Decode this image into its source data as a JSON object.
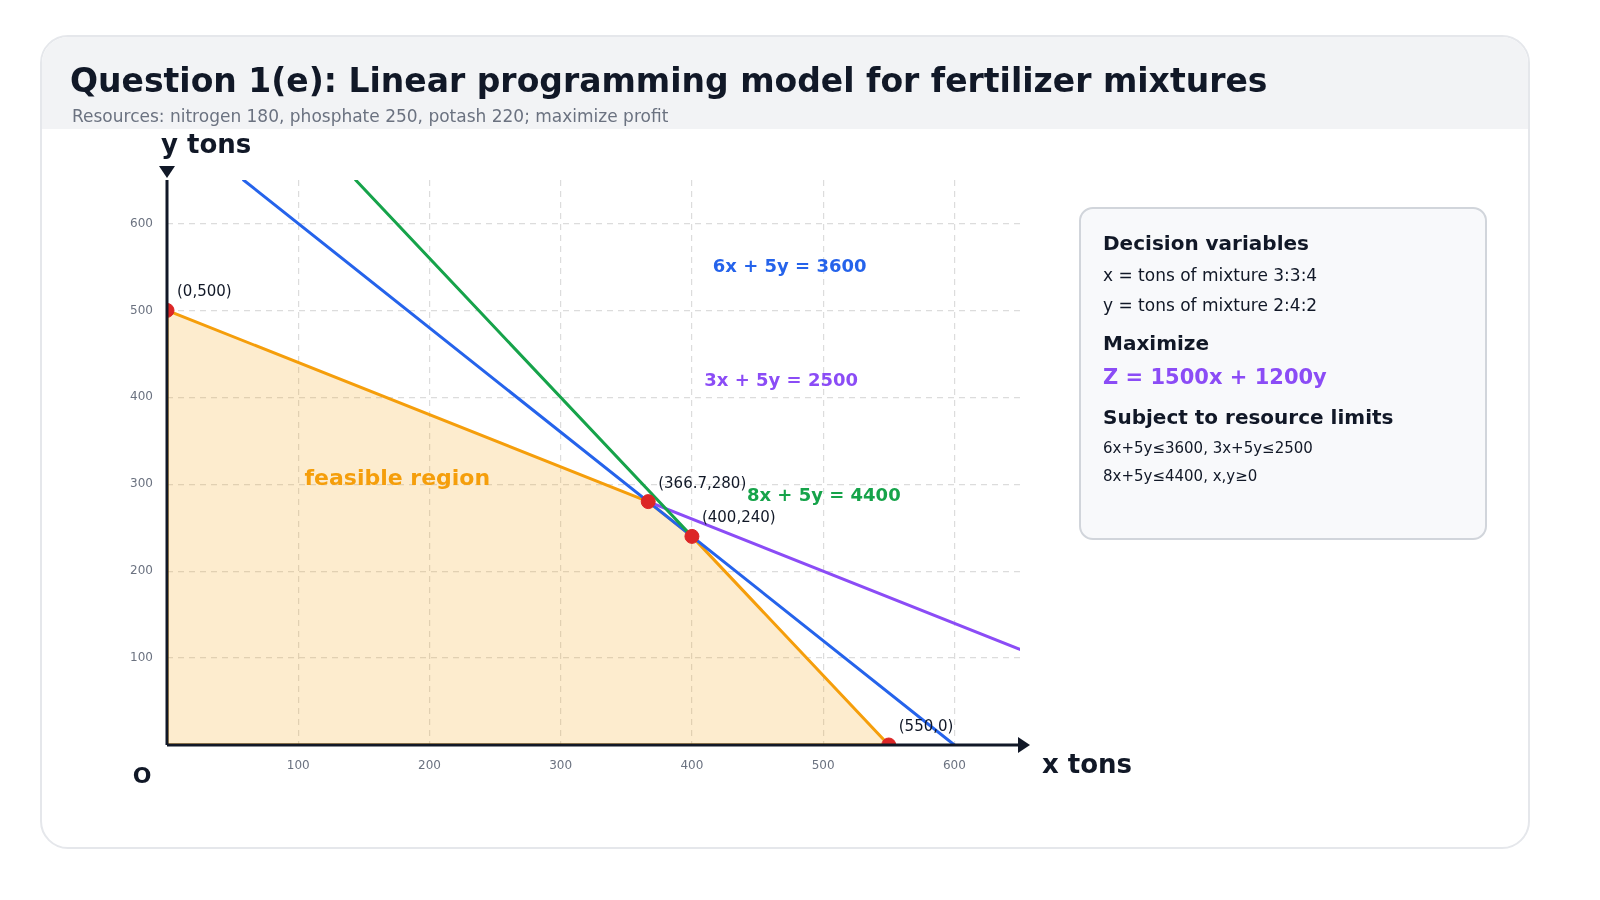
{
  "chart_data": [
    {
      "type": "line",
      "title": "Question 1(e): Linear programming model for fertilizer mixtures",
      "subtitle": "Resources: nitrogen 180, phosphate 250, potash 220; maximize profit",
      "xlabel": "x tons",
      "ylabel": "y tons",
      "xlim": [
        0,
        650
      ],
      "ylim": [
        0,
        650
      ],
      "xticks": [
        100,
        200,
        300,
        400,
        500,
        600
      ],
      "yticks": [
        100,
        200,
        300,
        400,
        500,
        600
      ],
      "grid": true,
      "legend": false,
      "marker": "none",
      "line_style": "solid",
      "annotations": [
        {
          "text": "O",
          "x": 0,
          "y": 0
        },
        {
          "text": "(0,500)",
          "x": 0,
          "y": 500
        },
        {
          "text": "(366.7,280)",
          "x": 366.7,
          "y": 280
        },
        {
          "text": "(400,240)",
          "x": 400,
          "y": 240
        },
        {
          "text": "(550,0)",
          "x": 550,
          "y": 0
        }
      ],
      "series": [
        {
          "type": "area",
          "name": "feasible region",
          "color": "#f59e0b",
          "x": [
            0,
            0,
            366.7,
            400,
            550,
            0
          ],
          "values": [
            0,
            500,
            280,
            240,
            0,
            0
          ]
        },
        {
          "type": "line",
          "name": "6x + 5y = 3600",
          "color": "#2563eb",
          "x": [
            58.3,
            600
          ],
          "values": [
            650,
            0
          ]
        },
        {
          "type": "line",
          "name": "3x + 5y = 2500",
          "color": "#8b4cf6",
          "x": [
            366.7,
            650
          ],
          "values": [
            280,
            110
          ]
        },
        {
          "type": "line",
          "name": "8x + 5y = 4400",
          "color": "#16a34a",
          "x": [
            143.75,
            400
          ],
          "values": [
            650,
            240
          ]
        },
        {
          "type": "scatter",
          "color": "#dc2626",
          "marker": "circle",
          "x": [
            0,
            366.7,
            400,
            550
          ],
          "values": [
            500,
            280,
            240,
            0
          ]
        }
      ]
    },
    {
      "type": "other",
      "annotations": [
        "Decision variables",
        "x = tons of mixture 3:3:4",
        "y = tons of mixture 2:4:2",
        "Maximize",
        "Z = 1500x + 1200y",
        "Subject to resource limits",
        "6x+5y≤3600, 3x+5y≤2500",
        "8x+5y≤4400, x,y≥0"
      ]
    }
  ]
}
